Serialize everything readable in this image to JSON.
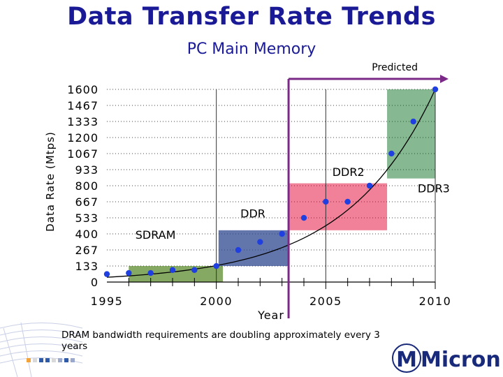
{
  "slide": {
    "title": "Data Transfer Rate Trends",
    "subtitle": "PC Main Memory",
    "caption": "DRAM bandwidth requirements are doubling approximately every 3 years",
    "logo_text": "Micron",
    "logo_prefix": "M"
  },
  "colors": {
    "title": "#1a1a96",
    "point": "#1f3fe0",
    "sdram": "#7ea45a",
    "ddr": "#5a6fa6",
    "ddr2": "#f07a92",
    "ddr3": "#7fb48c",
    "predicted": "#7a2a86"
  },
  "chart_data": {
    "type": "scatter",
    "title": "Data Transfer Rate Trends",
    "subtitle": "PC Main Memory",
    "xlabel": "Year",
    "ylabel": "Data Rate (Mtps)",
    "xlim": [
      1995,
      2010
    ],
    "ylim": [
      0,
      1600
    ],
    "x_ticks": [
      1995,
      2000,
      2005,
      2010
    ],
    "y_ticks": [
      0,
      133,
      267,
      400,
      533,
      667,
      800,
      933,
      1067,
      1200,
      1333,
      1467,
      1600
    ],
    "y_tick_labels": [
      "0",
      "133",
      "267",
      "400",
      "533",
      "667",
      "800",
      "933",
      "1067",
      "1200",
      "1333",
      "1467",
      "1600"
    ],
    "x_tick_labels": [
      "1995",
      "2000",
      "2005",
      "2010"
    ],
    "grid": true,
    "series": [
      {
        "name": "Data rate",
        "points": [
          {
            "x": 1995,
            "y": 66
          },
          {
            "x": 1996,
            "y": 75
          },
          {
            "x": 1997,
            "y": 75
          },
          {
            "x": 1998,
            "y": 100
          },
          {
            "x": 1999,
            "y": 100
          },
          {
            "x": 2000,
            "y": 133
          },
          {
            "x": 2001,
            "y": 266
          },
          {
            "x": 2002,
            "y": 333
          },
          {
            "x": 2003,
            "y": 400
          },
          {
            "x": 2004,
            "y": 533
          },
          {
            "x": 2005,
            "y": 667
          },
          {
            "x": 2006,
            "y": 667
          },
          {
            "x": 2007,
            "y": 800
          },
          {
            "x": 2008,
            "y": 1067
          },
          {
            "x": 2009,
            "y": 1333
          },
          {
            "x": 2010,
            "y": 1600
          }
        ]
      }
    ],
    "trend": {
      "name": "Exponential trend",
      "points": [
        {
          "x": 1995,
          "y": 40
        },
        {
          "x": 1998,
          "y": 80
        },
        {
          "x": 2001,
          "y": 165
        },
        {
          "x": 2004,
          "y": 360
        },
        {
          "x": 2007,
          "y": 800
        },
        {
          "x": 2010,
          "y": 1600
        }
      ]
    },
    "regions": [
      {
        "name": "SDRAM",
        "x0": 1996,
        "x1": 2000.3,
        "y0": 0,
        "y1": 133,
        "color": "#7ea45a"
      },
      {
        "name": "DDR",
        "x0": 2000.1,
        "x1": 2003.3,
        "y0": 133,
        "y1": 430,
        "color": "#5a6fa6"
      },
      {
        "name": "DDR2",
        "x0": 2003.3,
        "x1": 2007.8,
        "y0": 430,
        "y1": 820,
        "color": "#f07a92"
      },
      {
        "name": "DDR3",
        "x0": 2007.8,
        "x1": 2010,
        "y0": 860,
        "y1": 1600,
        "color": "#7fb48c"
      }
    ],
    "region_labels": [
      {
        "text": "SDRAM",
        "x": 1996.3,
        "y": 360
      },
      {
        "text": "DDR",
        "x": 2001.1,
        "y": 535
      },
      {
        "text": "DDR2",
        "x": 2005.3,
        "y": 880
      },
      {
        "text": "DDR3",
        "x": 2009.2,
        "y": 745
      }
    ],
    "predicted_start": 2003.3,
    "predicted_label": "Predicted"
  }
}
